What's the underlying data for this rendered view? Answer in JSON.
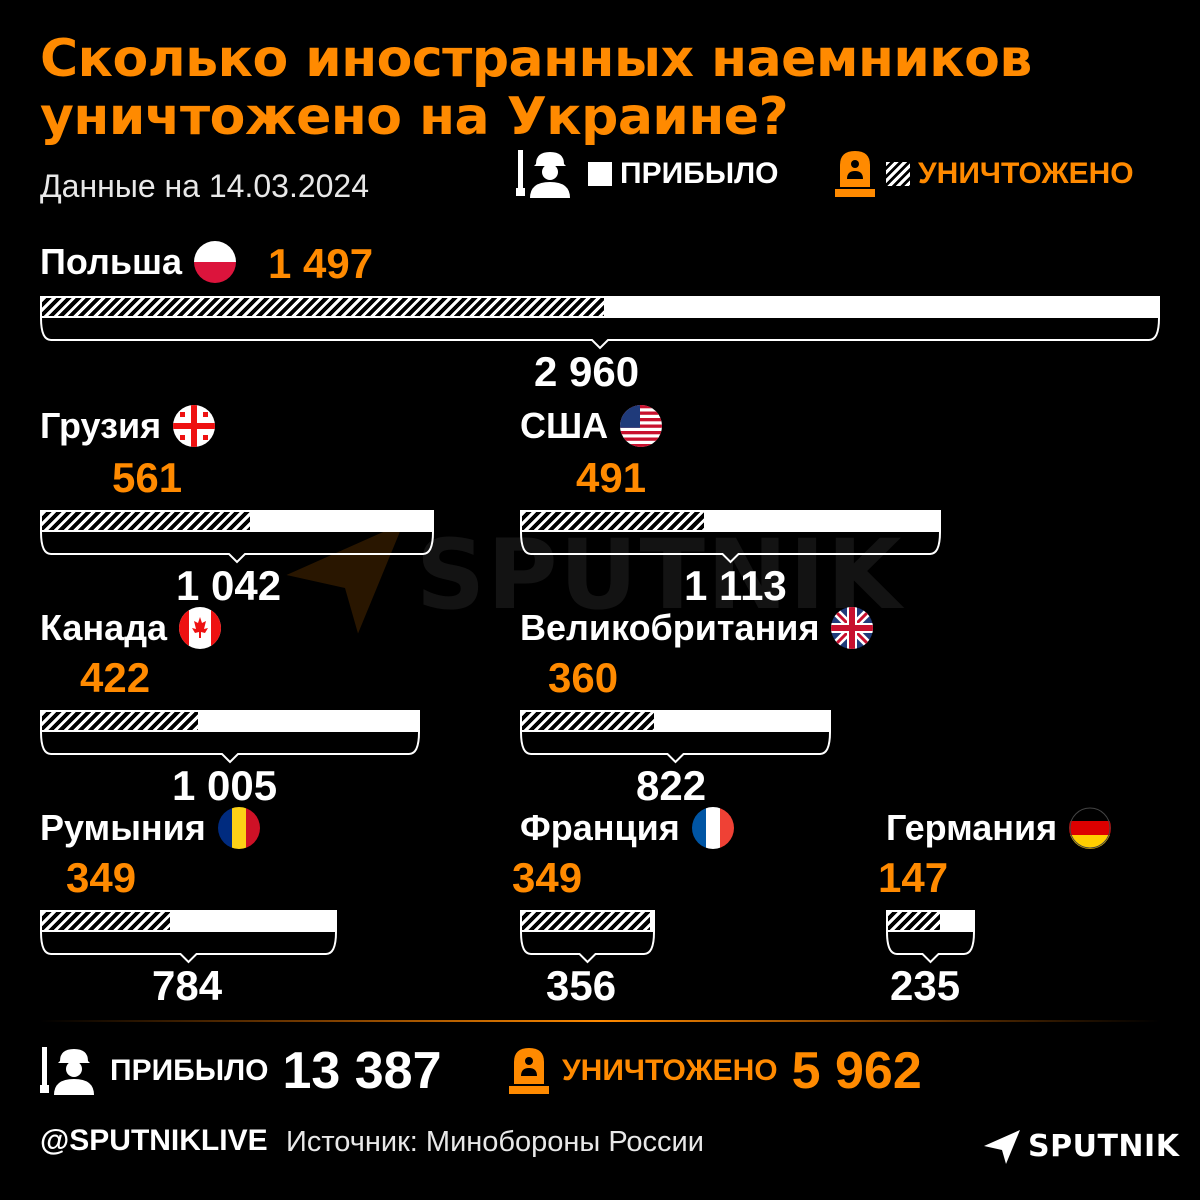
{
  "title_lines": [
    "Сколько иностранных наемников",
    "уничтожено на Украине?"
  ],
  "subtitle": "Данные на 14.03.2024",
  "legend": {
    "arrived": "ПРИБЫЛО",
    "destroyed": "УНИЧТОЖЕНО"
  },
  "colors": {
    "background": "#000000",
    "accent": "#ff8a00",
    "arrived_bar": "#ffffff"
  },
  "icons": {
    "arrived": "soldier-with-rifle-icon",
    "destroyed": "gravestone-icon"
  },
  "chart_data": {
    "type": "bar",
    "orientation": "horizontal",
    "series": [
      {
        "name": "ПРИБЫЛО",
        "values": [
          2960,
          1042,
          1113,
          1005,
          822,
          784,
          356,
          235
        ]
      },
      {
        "name": "УНИЧТОЖЕНО",
        "values": [
          1497,
          561,
          491,
          422,
          360,
          349,
          349,
          147
        ]
      }
    ],
    "countries": [
      {
        "name": "Польша",
        "flag": "poland-flag-icon",
        "destroyed": 1497,
        "arrived": 2960,
        "destroyed_label": "1 497",
        "arrived_label": "2 960"
      },
      {
        "name": "Грузия",
        "flag": "georgia-flag-icon",
        "destroyed": 561,
        "arrived": 1042,
        "destroyed_label": "561",
        "arrived_label": "1 042"
      },
      {
        "name": "США",
        "flag": "usa-flag-icon",
        "destroyed": 491,
        "arrived": 1113,
        "destroyed_label": "491",
        "arrived_label": "1 113"
      },
      {
        "name": "Канада",
        "flag": "canada-flag-icon",
        "destroyed": 422,
        "arrived": 1005,
        "destroyed_label": "422",
        "arrived_label": "1 005"
      },
      {
        "name": "Великобритания",
        "flag": "uk-flag-icon",
        "destroyed": 360,
        "arrived": 822,
        "destroyed_label": "360",
        "arrived_label": "822"
      },
      {
        "name": "Румыния",
        "flag": "romania-flag-icon",
        "destroyed": 349,
        "arrived": 784,
        "destroyed_label": "349",
        "arrived_label": "784"
      },
      {
        "name": "Франция",
        "flag": "france-flag-icon",
        "destroyed": 349,
        "arrived": 356,
        "destroyed_label": "349",
        "arrived_label": "356"
      },
      {
        "name": "Германия",
        "flag": "germany-flag-icon",
        "destroyed": 147,
        "arrived": 235,
        "destroyed_label": "147",
        "arrived_label": "235"
      }
    ],
    "xlim": [
      0,
      2960
    ],
    "grid": false
  },
  "totals": {
    "arrived_label": "ПРИБЫЛО",
    "arrived_value": "13 387",
    "destroyed_label": "УНИЧТОЖЕНО",
    "destroyed_value": "5 962"
  },
  "footer": {
    "handle": "@SPUTNIKLIVE",
    "source": "Источник: Минобороны России",
    "logo": "SPUTNIK"
  },
  "watermark": "SPUTNIK"
}
